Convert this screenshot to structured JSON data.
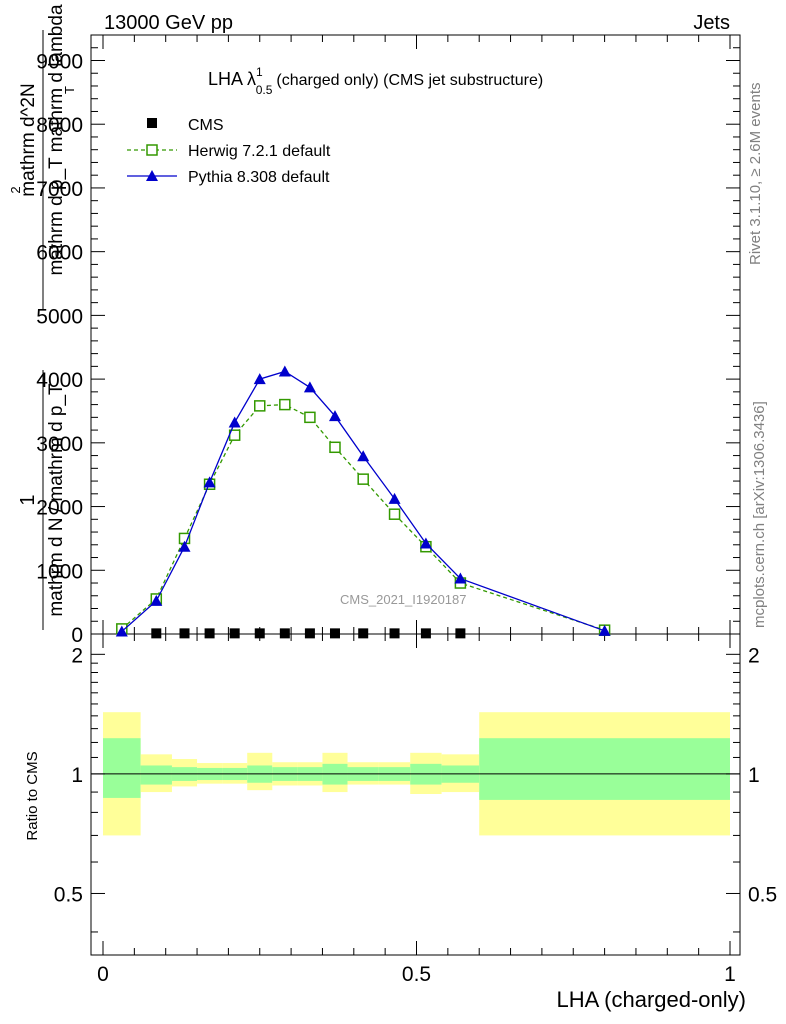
{
  "header": {
    "energy": "13000 GeV pp",
    "category": "Jets"
  },
  "side": {
    "rivet": "Rivet 3.1.10, ≥ 2.6M events",
    "mcplots": "mcplots.cern.ch [arXiv:1306.3436]"
  },
  "chart_data": {
    "type": "line",
    "title_main": "LHA λ",
    "title_sup": "1",
    "title_sub": "0.5",
    "title_rest": "(charged only) (CMS jet substructure)",
    "watermark": "CMS_2021_I1920187",
    "xlabel": "LHA (charged-only)",
    "ylabel_num": "1",
    "ylabel_den": "mathrm d N / mathrm d p_T",
    "ylabel_num2": "mathrm d^2N",
    "ylabel_den2": "mathrm d p_T mathrm d lambda",
    "ylabel_num2_sup": "2",
    "ylabel_den2_sub": "T",
    "ratio_ylabel": "Ratio to CMS",
    "xlim": [
      0,
      1
    ],
    "ylim": [
      0,
      9400
    ],
    "ratio_ylim": [
      0.35,
      2.25
    ],
    "x_ticks": [
      0,
      0.5,
      1
    ],
    "x_tick_labels": [
      "0",
      "0.5",
      "1"
    ],
    "y_ticks": [
      0,
      1000,
      2000,
      3000,
      4000,
      5000,
      6000,
      7000,
      8000,
      9000
    ],
    "y_tick_labels": [
      "0",
      "1000",
      "2000",
      "3000",
      "4000",
      "5000",
      "6000",
      "7000",
      "8000",
      "9000"
    ],
    "ratio_ticks": [
      0.5,
      1,
      2
    ],
    "ratio_tick_labels": [
      "0.5",
      "1",
      "2"
    ],
    "series": [
      {
        "name": "CMS",
        "color": "#000000",
        "marker": "square-filled",
        "x": [
          0.085,
          0.13,
          0.17,
          0.21,
          0.25,
          0.29,
          0.33,
          0.37,
          0.415,
          0.465,
          0.515,
          0.57
        ],
        "values": [
          10,
          10,
          10,
          10,
          10,
          10,
          10,
          10,
          10,
          10,
          10,
          10
        ]
      },
      {
        "name": "Herwig 7.2.1 default",
        "color": "#339900",
        "marker": "square-open",
        "dashed": true,
        "x": [
          0.03,
          0.085,
          0.13,
          0.17,
          0.21,
          0.25,
          0.29,
          0.33,
          0.37,
          0.415,
          0.465,
          0.515,
          0.57,
          0.8
        ],
        "values": [
          80,
          550,
          1500,
          2350,
          3120,
          3580,
          3600,
          3400,
          2930,
          2430,
          1880,
          1370,
          800,
          60
        ]
      },
      {
        "name": "Pythia 8.308 default",
        "color": "#0000cc",
        "marker": "triangle-filled",
        "x": [
          0.03,
          0.085,
          0.13,
          0.17,
          0.21,
          0.25,
          0.29,
          0.33,
          0.37,
          0.415,
          0.465,
          0.515,
          0.57,
          0.8
        ],
        "values": [
          40,
          520,
          1370,
          2380,
          3320,
          4000,
          4120,
          3870,
          3420,
          2790,
          2120,
          1420,
          870,
          50
        ]
      }
    ],
    "ratio_bands": {
      "edges": [
        0,
        0.06,
        0.11,
        0.15,
        0.19,
        0.23,
        0.27,
        0.31,
        0.35,
        0.39,
        0.44,
        0.49,
        0.54,
        0.6,
        1.0
      ],
      "green_lo": [
        0.87,
        0.94,
        0.96,
        0.965,
        0.965,
        0.95,
        0.96,
        0.96,
        0.94,
        0.96,
        0.96,
        0.94,
        0.95,
        0.86
      ],
      "green_hi": [
        1.23,
        1.05,
        1.04,
        1.035,
        1.035,
        1.05,
        1.04,
        1.04,
        1.06,
        1.04,
        1.04,
        1.06,
        1.05,
        1.23
      ],
      "yellow_lo": [
        0.7,
        0.9,
        0.93,
        0.945,
        0.945,
        0.91,
        0.935,
        0.935,
        0.9,
        0.94,
        0.94,
        0.89,
        0.9,
        0.7
      ],
      "yellow_hi": [
        1.43,
        1.12,
        1.09,
        1.065,
        1.065,
        1.13,
        1.07,
        1.07,
        1.13,
        1.07,
        1.07,
        1.13,
        1.12,
        1.43
      ],
      "green_color": "#99ff99",
      "yellow_color": "#ffff99"
    }
  }
}
